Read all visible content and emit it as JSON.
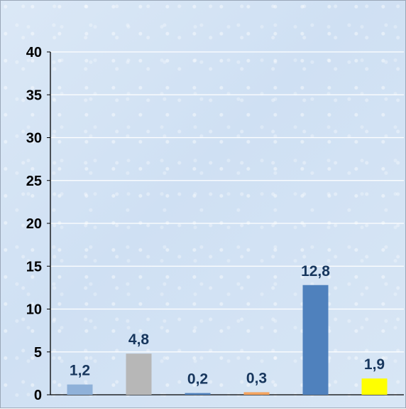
{
  "chart_data": {
    "type": "bar",
    "categories": [
      "",
      "",
      "",
      "",
      "",
      ""
    ],
    "values": [
      1.2,
      4.8,
      0.2,
      0.3,
      12.8,
      1.9
    ],
    "data_labels": [
      "1,2",
      "4,8",
      "0,2",
      "0,3",
      "12,8",
      "1,9"
    ],
    "colors": [
      "#8fb1d9",
      "#b7b7b7",
      "#4f81bd",
      "#f4a460",
      "#4f81bd",
      "#ffff00"
    ],
    "y_ticks": [
      0,
      5,
      10,
      15,
      20,
      25,
      30,
      35,
      40
    ],
    "y_tick_labels": [
      "0",
      "5",
      "10",
      "15",
      "20",
      "25",
      "30",
      "35",
      "40"
    ],
    "ylim": [
      0,
      40
    ],
    "grid": true,
    "legend": "none"
  }
}
